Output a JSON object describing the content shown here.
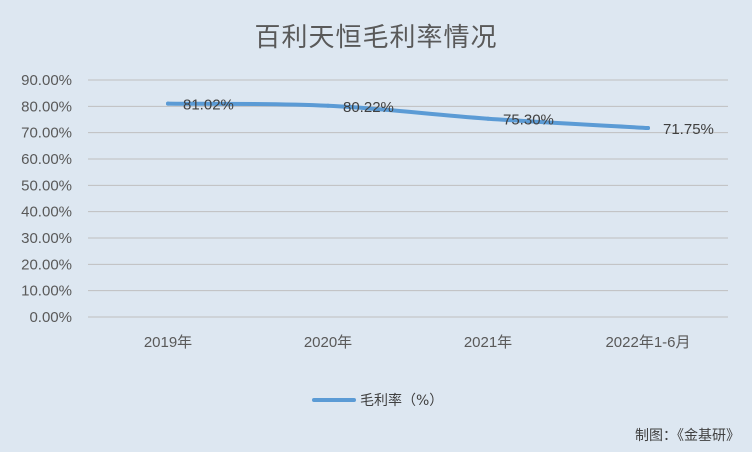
{
  "chart_data": {
    "type": "line",
    "title": "百利天恒毛利率情况",
    "categories": [
      "2019年",
      "2020年",
      "2021年",
      "2022年1-6月"
    ],
    "series": [
      {
        "name": "毛利率（%）",
        "values": [
          81.02,
          80.22,
          75.3,
          71.75
        ],
        "labels": [
          "81.02%",
          "80.22%",
          "75.30%",
          "71.75%"
        ],
        "color": "#5b9bd5"
      }
    ],
    "y_ticks": [
      "0.00%",
      "10.00%",
      "20.00%",
      "30.00%",
      "40.00%",
      "50.00%",
      "60.00%",
      "70.00%",
      "80.00%",
      "90.00%"
    ],
    "ylim": [
      0,
      90
    ],
    "grid": true,
    "legend_position": "bottom"
  },
  "credit": "制图：《金基研》",
  "colors": {
    "background": "#dde7f1",
    "grid": "#bfbfbf",
    "line": "#5b9bd5"
  }
}
